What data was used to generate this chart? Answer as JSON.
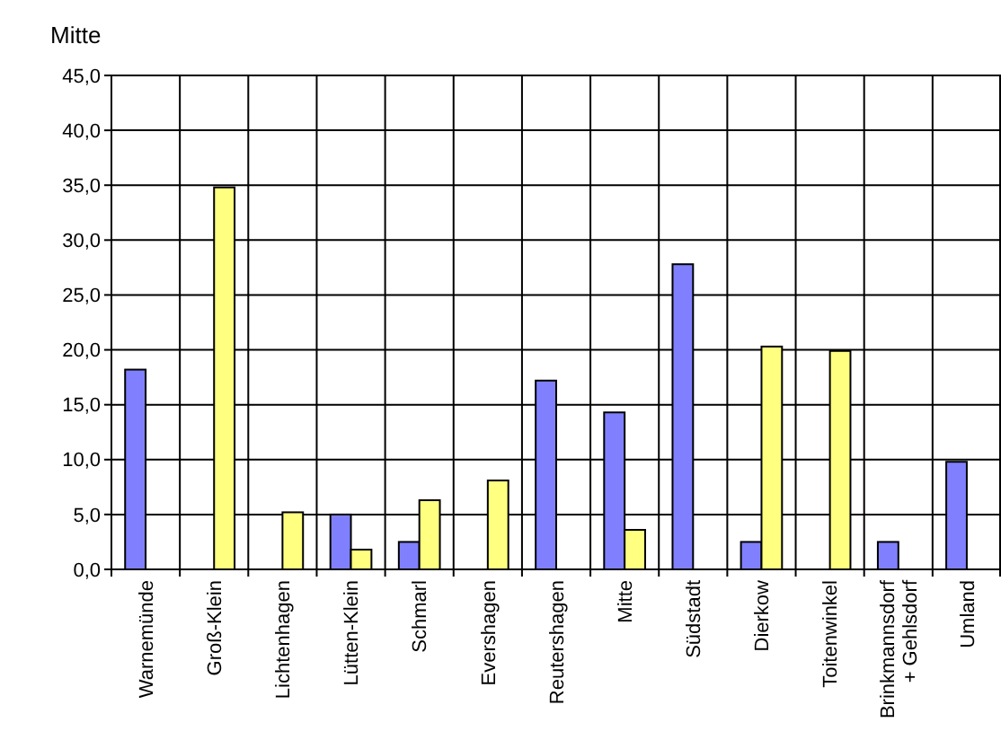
{
  "chart_data": {
    "type": "bar",
    "title": "Mitte",
    "categories": [
      "Warnemünde",
      "Groß-Klein",
      "Lichtenhagen",
      "Lütten-Klein",
      "Schmarl",
      "Evershagen",
      "Reutershagen",
      "Mitte",
      "Südstadt",
      "Dierkow",
      "Toitenwinkel",
      "Brinkmannsdorf\n+ Gehlsdorf",
      "Umland"
    ],
    "series": [
      {
        "color": "#8080ff",
        "values": [
          18.2,
          null,
          null,
          5.0,
          2.5,
          null,
          17.2,
          14.3,
          27.8,
          2.5,
          null,
          2.5,
          9.8
        ]
      },
      {
        "color": "#ffff80",
        "values": [
          null,
          34.8,
          5.2,
          1.8,
          6.3,
          8.1,
          null,
          3.6,
          null,
          20.3,
          19.9,
          null,
          null
        ]
      }
    ],
    "ylim": [
      0,
      45
    ],
    "yticks": [
      {
        "value": 0,
        "label": "0,0"
      },
      {
        "value": 5,
        "label": "5,0"
      },
      {
        "value": 10,
        "label": "10,0"
      },
      {
        "value": 15,
        "label": "15,0"
      },
      {
        "value": 20,
        "label": "20,0"
      },
      {
        "value": 25,
        "label": "25,0"
      },
      {
        "value": 30,
        "label": "30,0"
      },
      {
        "value": 35,
        "label": "35,0"
      },
      {
        "value": 40,
        "label": "40,0"
      },
      {
        "value": 45,
        "label": "45,0"
      }
    ],
    "grid": true
  }
}
